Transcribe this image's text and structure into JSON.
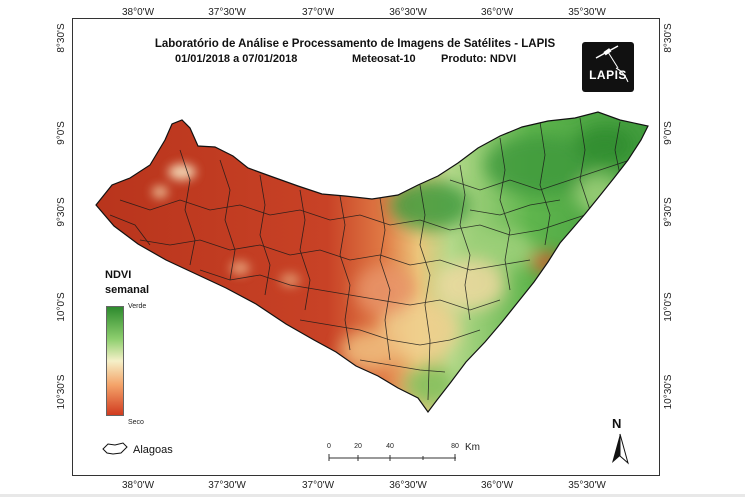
{
  "title": {
    "line1": "Laboratório de Análise e Processamento de Imagens de Satélites - LAPIS",
    "period": "01/01/2018  a 07/01/2018",
    "satellite": "Meteosat-10",
    "product": "Produto: NDVI"
  },
  "logo": {
    "text": "LAPIS"
  },
  "axes": {
    "longitude_labels": [
      "38°0'W",
      "37°30'W",
      "37°0'W",
      "36°30'W",
      "36°0'W",
      "35°30'W"
    ],
    "latitude_labels": [
      "8°30'S",
      "9°0'S",
      "9°30'S",
      "10°0'S",
      "10°30'S"
    ]
  },
  "legend": {
    "title_line1": "NDVI",
    "title_line2": "semanal",
    "top_label": "Verde",
    "bottom_label": "Seco",
    "color_high": "#2e8b2e",
    "color_mid": "#f5f0c8",
    "color_low": "#d13b1f"
  },
  "boundary_legend": {
    "label": "Alagoas"
  },
  "scale_bar": {
    "ticks": [
      "0",
      "20",
      "40",
      "80"
    ],
    "unit": "Km"
  },
  "north_arrow": {
    "label": "N",
    "icon": "north-arrow-icon"
  }
}
